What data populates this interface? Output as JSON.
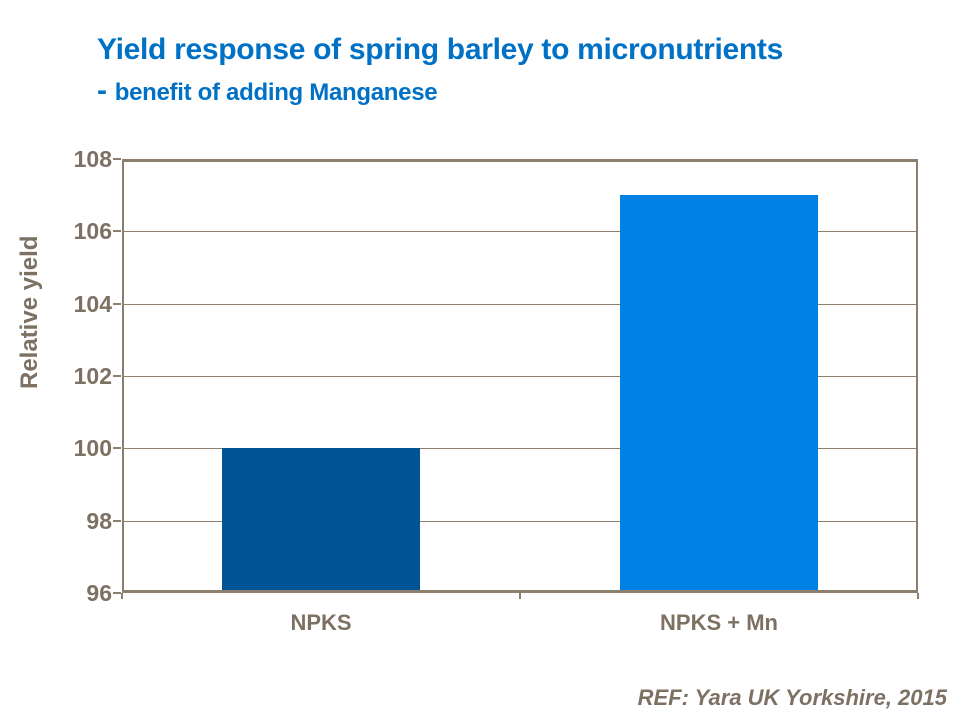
{
  "title": {
    "line1": "Yield response of spring barley to micronutrients",
    "line2_dash": "-",
    "line2_text": "benefit of adding Manganese",
    "color": "#0071C5"
  },
  "footer": {
    "ref": "REF: Yara UK Yorkshire, 2015"
  },
  "colors": {
    "axis": "#8C7F6D",
    "gridline": "#8C7F6D",
    "tick_text": "#7D7163",
    "title_blue": "#0071C5"
  },
  "chart_data": {
    "type": "bar",
    "categories": [
      "NPKS",
      "NPKS + Mn"
    ],
    "values": [
      100,
      107
    ],
    "bar_colors": [
      "#005596",
      "#0082E5"
    ],
    "title": "Yield response of spring barley to micronutrients - benefit of adding Manganese",
    "xlabel": "",
    "ylabel": "Relative yield",
    "ylim": [
      96,
      108
    ],
    "yticks": [
      96,
      98,
      100,
      102,
      104,
      106,
      108
    ],
    "grid": true,
    "legend": false
  }
}
